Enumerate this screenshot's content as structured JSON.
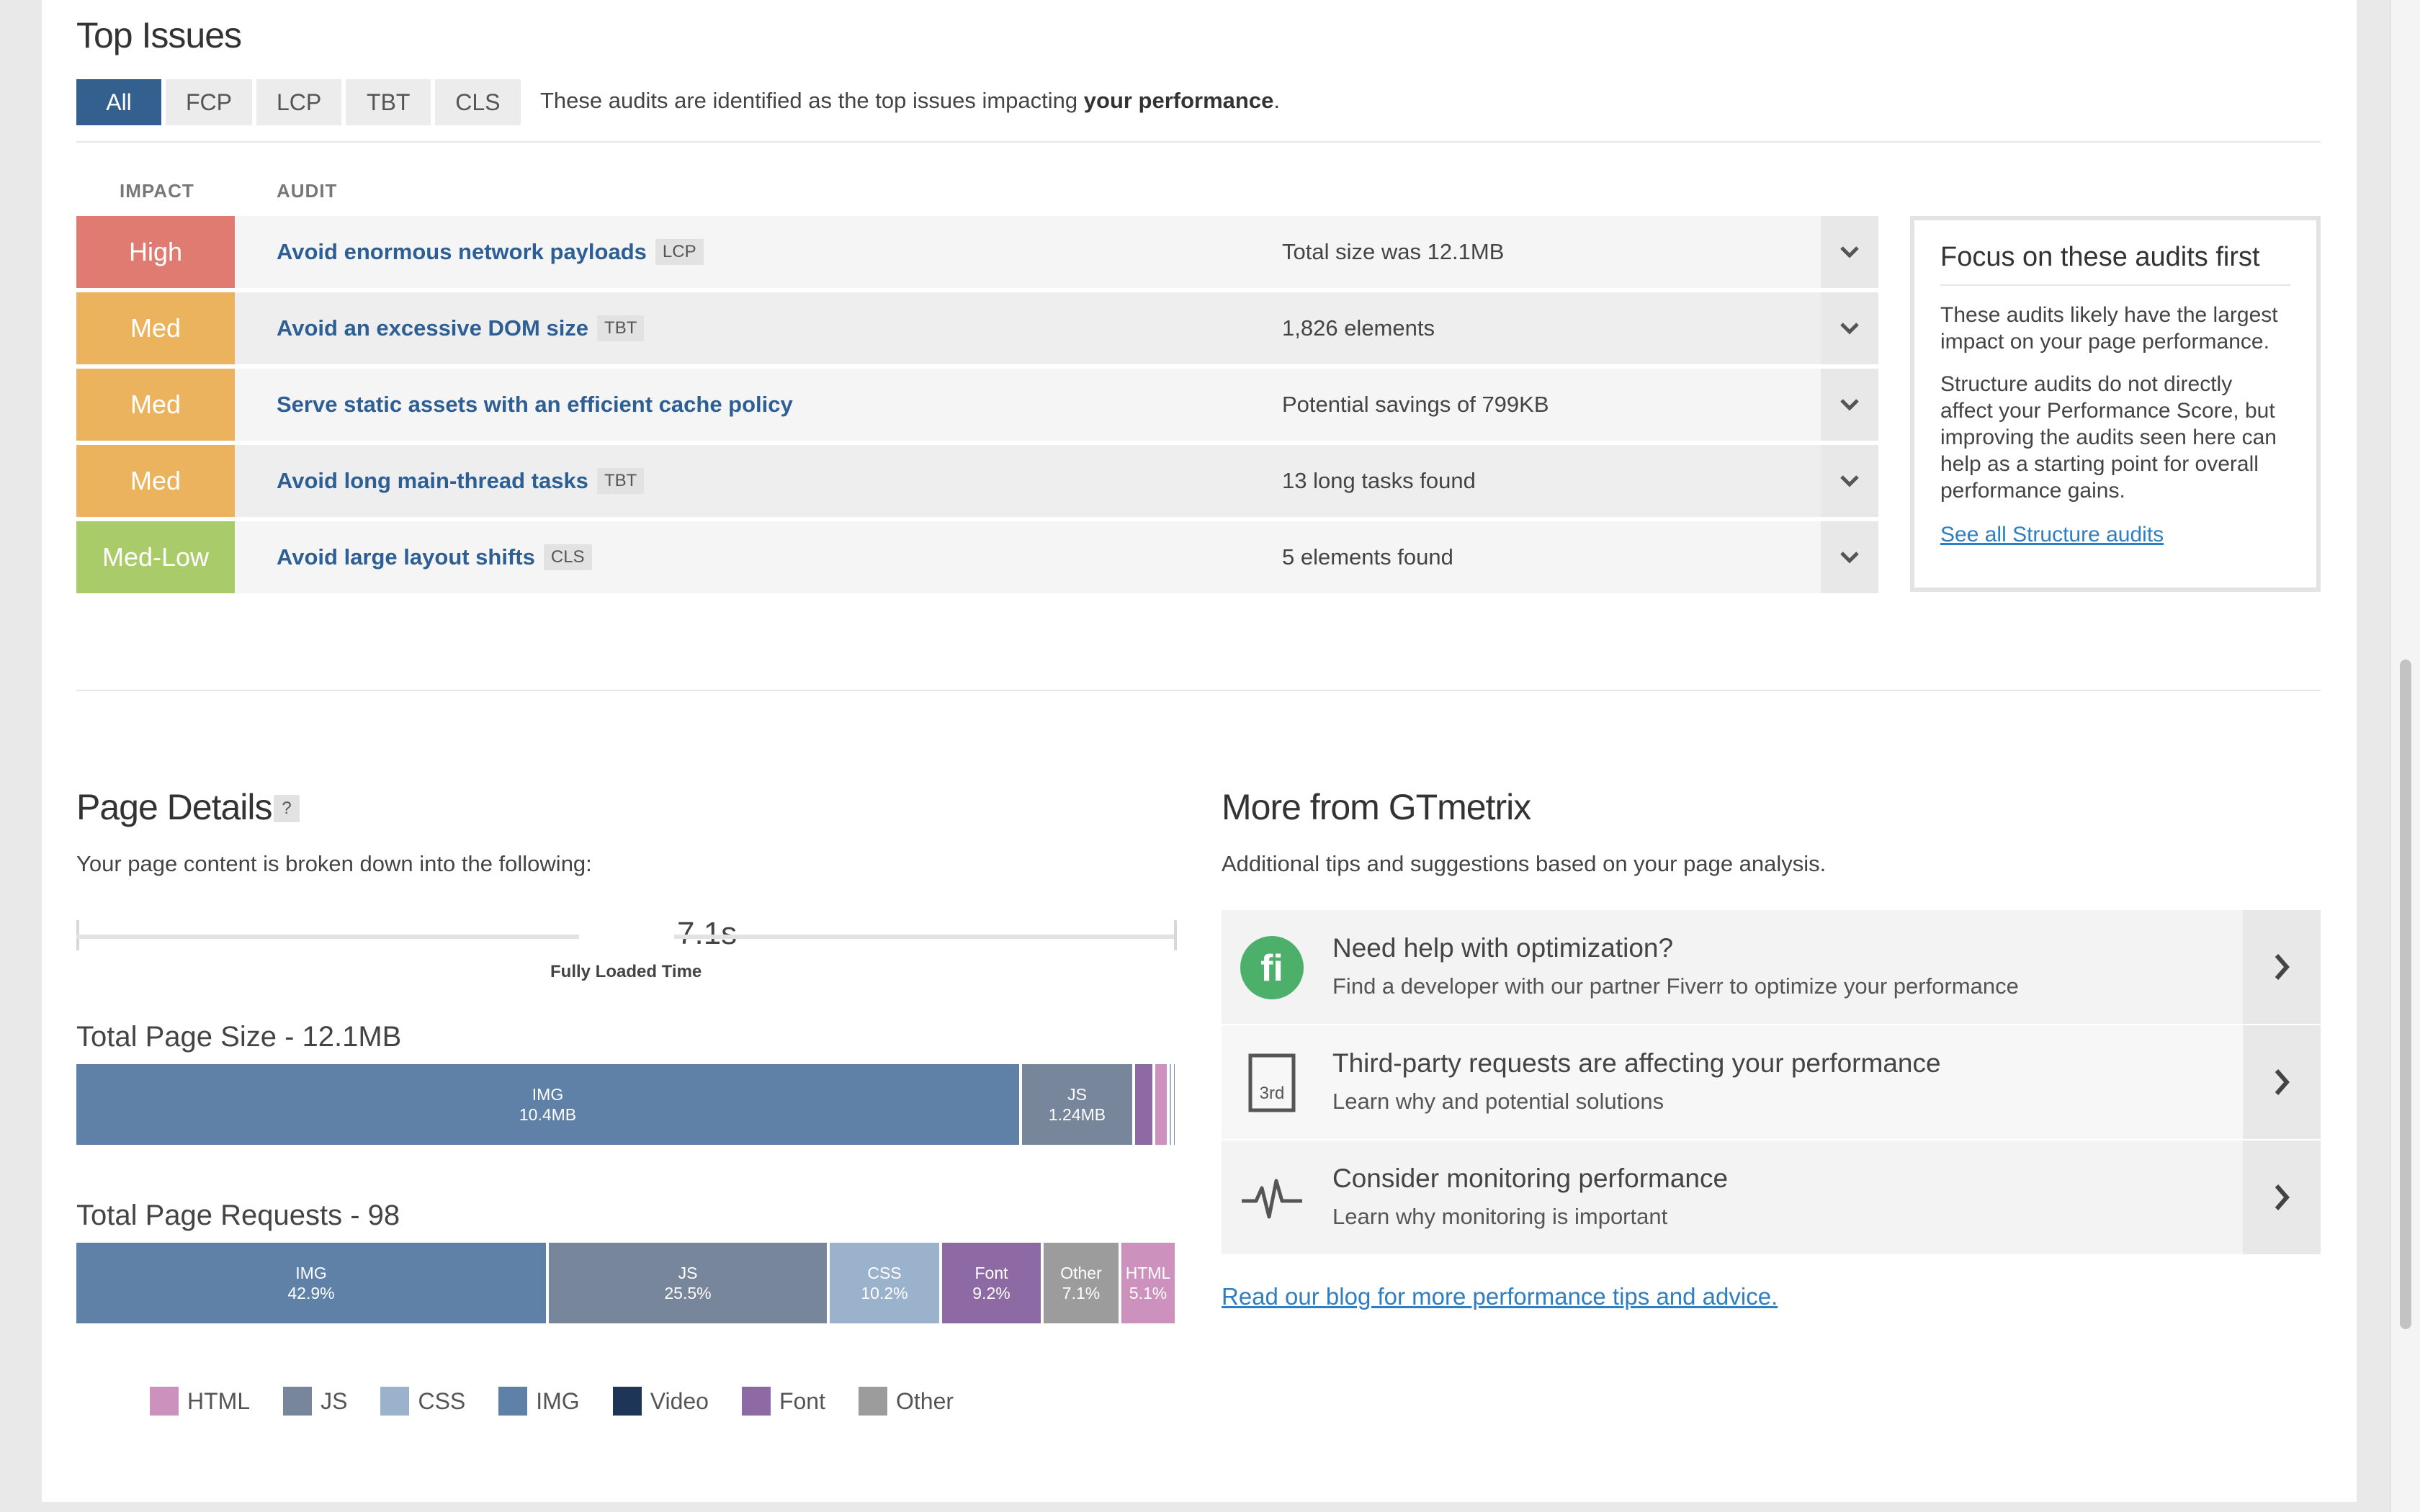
{
  "top_issues": {
    "title": "Top Issues",
    "filters": [
      "All",
      "FCP",
      "LCP",
      "TBT",
      "CLS"
    ],
    "active_filter": "All",
    "description_prefix": "These audits are identified as the top issues impacting ",
    "description_bold": "your performance",
    "description_suffix": ".",
    "col_impact": "IMPACT",
    "col_audit": "AUDIT",
    "rows": [
      {
        "impact": "High",
        "impact_color": "#e07b72",
        "audit": "Avoid enormous network payloads",
        "tag": "LCP",
        "value": "Total size was 12.1MB"
      },
      {
        "impact": "Med",
        "impact_color": "#ecb35f",
        "audit": "Avoid an excessive DOM size",
        "tag": "TBT",
        "value": "1,826 elements"
      },
      {
        "impact": "Med",
        "impact_color": "#ecb35f",
        "audit": "Serve static assets with an efficient cache policy",
        "tag": "",
        "value": "Potential savings of 799KB"
      },
      {
        "impact": "Med",
        "impact_color": "#ecb35f",
        "audit": "Avoid long main-thread tasks",
        "tag": "TBT",
        "value": "13 long tasks found"
      },
      {
        "impact": "Med-Low",
        "impact_color": "#a9cb6a",
        "audit": "Avoid large layout shifts",
        "tag": "CLS",
        "value": "5 elements found"
      }
    ],
    "focus": {
      "title": "Focus on these audits first",
      "p1": "These audits likely have the largest impact on your page performance.",
      "p2": "Structure audits do not directly affect your Performance Score, but improving the audits seen here can help as a starting point for overall performance gains.",
      "link": "See all Structure audits"
    }
  },
  "page_details": {
    "title": "Page Details",
    "help": "?",
    "subtitle": "Your page content is broken down into the following:",
    "fully_loaded_value": "7.1s",
    "fully_loaded_label": "Fully Loaded Time",
    "size_title": "Total Page Size - 12.1MB",
    "requests_title": "Total Page Requests - 98",
    "size_segments": [
      {
        "type": "IMG",
        "label": "10.4MB",
        "fraction": 0.8595,
        "color": "#5f81a8"
      },
      {
        "type": "JS",
        "label": "1.24MB",
        "fraction": 0.1025,
        "color": "#77869a"
      },
      {
        "type": "",
        "label": "",
        "fraction": 0.018,
        "color": "#8e6aa4"
      },
      {
        "type": "",
        "label": "",
        "fraction": 0.013,
        "color": "#cc92bd"
      },
      {
        "type": "",
        "label": "",
        "fraction": 0.004,
        "color": "#9bb2cc"
      },
      {
        "type": "",
        "label": "",
        "fraction": 0.003,
        "color": "#8d8d8d"
      }
    ],
    "request_segments": [
      {
        "type": "IMG",
        "label": "42.9%",
        "fraction": 0.429,
        "color": "#5f81a8"
      },
      {
        "type": "JS",
        "label": "25.5%",
        "fraction": 0.255,
        "color": "#77869a"
      },
      {
        "type": "CSS",
        "label": "10.2%",
        "fraction": 0.102,
        "color": "#9bb2cc"
      },
      {
        "type": "Font",
        "label": "9.2%",
        "fraction": 0.092,
        "color": "#8e6aa4"
      },
      {
        "type": "Other",
        "label": "7.1%",
        "fraction": 0.071,
        "color": "#9c9c9c"
      },
      {
        "type": "HTML",
        "label": "5.1%",
        "fraction": 0.051,
        "color": "#cc92bd"
      }
    ],
    "legend": [
      {
        "label": "HTML",
        "color": "#cc92bd"
      },
      {
        "label": "JS",
        "color": "#77869a"
      },
      {
        "label": "CSS",
        "color": "#9bb2cc"
      },
      {
        "label": "IMG",
        "color": "#5f81a8"
      },
      {
        "label": "Video",
        "color": "#1f3557"
      },
      {
        "label": "Font",
        "color": "#8e6aa4"
      },
      {
        "label": "Other",
        "color": "#9c9c9c"
      }
    ]
  },
  "more": {
    "title": "More from GTmetrix",
    "subtitle": "Additional tips and suggestions based on your page analysis.",
    "cards": [
      {
        "icon": "fiverr-icon",
        "title": "Need help with optimization?",
        "desc": "Find a developer with our partner Fiverr to optimize your performance"
      },
      {
        "icon": "third-party-icon",
        "title": "Third-party requests are affecting your performance",
        "desc": "Learn why and potential solutions",
        "icon_text": "3rd"
      },
      {
        "icon": "heartbeat-icon",
        "title": "Consider monitoring performance",
        "desc": "Learn why monitoring is important"
      }
    ],
    "blog_link": "Read our blog for more performance tips and advice."
  }
}
